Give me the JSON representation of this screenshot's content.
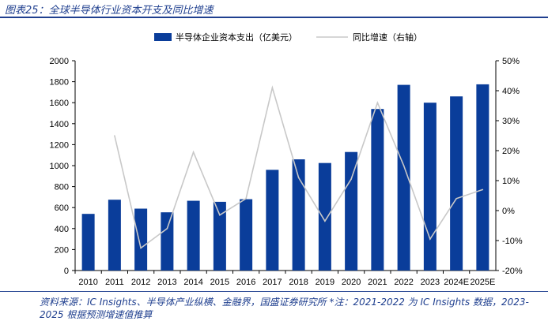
{
  "figure": {
    "title": "图表25：全球半导体行业资本开支及同比增速",
    "source": "资料来源：IC Insights、半导体产业纵横、金融界，国盛证券研究所 *注：2021-2022 为 IC Insights 数据，2023-2025 根据预测增速值推算"
  },
  "chart_data": {
    "type": "bar",
    "title": "全球半导体行业资本开支及同比增速",
    "categories": [
      "2010",
      "2011",
      "2012",
      "2013",
      "2014",
      "2015",
      "2016",
      "2017",
      "2018",
      "2019",
      "2020",
      "2021",
      "2022",
      "2023",
      "2024E",
      "2025E"
    ],
    "series": [
      {
        "name": "半导体企业资本支出（亿美元）",
        "type": "bar",
        "axis": "left",
        "color": "#0a3d9a",
        "values": [
          540,
          675,
          590,
          555,
          665,
          655,
          680,
          960,
          1060,
          1025,
          1130,
          1540,
          1770,
          1600,
          1660,
          1775
        ]
      },
      {
        "name": "同比增速（右轴）",
        "type": "line",
        "axis": "right",
        "color": "#c8c8c8",
        "values": [
          null,
          25,
          -12.5,
          -6,
          19.5,
          -1.5,
          4,
          41,
          11,
          -3.5,
          10.5,
          36,
          15,
          -9.5,
          4,
          7
        ]
      }
    ],
    "y_left": {
      "min": 0,
      "max": 2000,
      "step": 200,
      "ticks": [
        "0",
        "200",
        "400",
        "600",
        "800",
        "1000",
        "1200",
        "1400",
        "1600",
        "1800",
        "2000"
      ]
    },
    "y_right": {
      "min": -20,
      "max": 50,
      "step": 10,
      "ticks": [
        "-20%",
        "-10%",
        "0%",
        "10%",
        "20%",
        "30%",
        "40%",
        "50%"
      ]
    },
    "legend": {
      "position": "top-center",
      "bar_label": "半导体企业资本支出（亿美元）",
      "line_label": "同比增速（右轴）"
    },
    "grid": false
  }
}
